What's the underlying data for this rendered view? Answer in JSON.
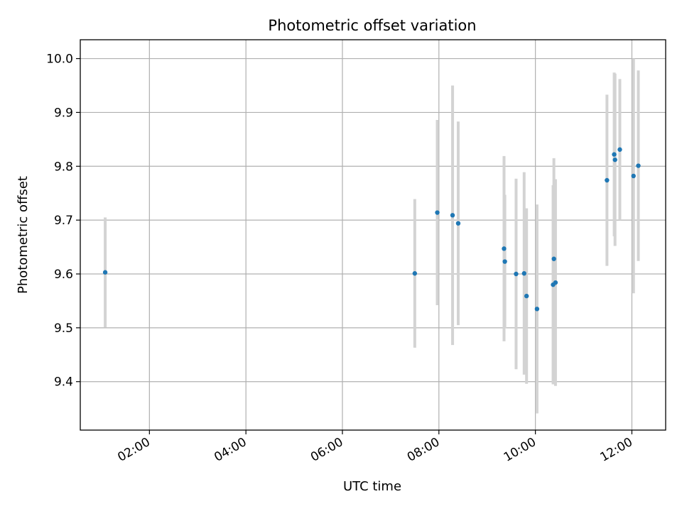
{
  "chart_data": {
    "type": "scatter",
    "title": "Photometric offset variation",
    "xlabel": "UTC time",
    "ylabel": "Photometric offset",
    "x_ticks": [
      "02:00",
      "04:00",
      "06:00",
      "08:00",
      "10:00",
      "12:00"
    ],
    "y_ticks": [
      "9.4",
      "9.5",
      "9.6",
      "9.7",
      "9.8",
      "9.9",
      "10.0"
    ],
    "xlim": [
      "00:34",
      "12:42"
    ],
    "ylim": [
      9.31,
      10.035
    ],
    "grid": true,
    "colors": {
      "point": "#1f77b4",
      "errorbar": "#d3d3d3",
      "grid": "#b0b0b0"
    },
    "series": [
      {
        "points": [
          {
            "x": "01:05",
            "y": 9.603,
            "err": 0.102
          },
          {
            "x": "07:30",
            "y": 9.601,
            "err": 0.138
          },
          {
            "x": "07:58",
            "y": 9.714,
            "err": 0.172
          },
          {
            "x": "08:17",
            "y": 9.709,
            "err": 0.241
          },
          {
            "x": "08:24",
            "y": 9.694,
            "err": 0.189
          },
          {
            "x": "09:21",
            "y": 9.647,
            "err": 0.172
          },
          {
            "x": "09:22",
            "y": 9.623,
            "err": 0.124
          },
          {
            "x": "09:36",
            "y": 9.6,
            "err": 0.177
          },
          {
            "x": "09:46",
            "y": 9.601,
            "err": 0.188
          },
          {
            "x": "09:49",
            "y": 9.559,
            "err": 0.163
          },
          {
            "x": "10:02",
            "y": 9.535,
            "err": 0.194
          },
          {
            "x": "10:22",
            "y": 9.58,
            "err": 0.185
          },
          {
            "x": "10:23",
            "y": 9.628,
            "err": 0.187
          },
          {
            "x": "10:25",
            "y": 9.584,
            "err": 0.192
          },
          {
            "x": "11:29",
            "y": 9.774,
            "err": 0.159
          },
          {
            "x": "11:38",
            "y": 9.822,
            "err": 0.152
          },
          {
            "x": "11:39",
            "y": 9.812,
            "err": 0.16
          },
          {
            "x": "11:45",
            "y": 9.831,
            "err": 0.131
          },
          {
            "x": "12:02",
            "y": 9.782,
            "err": 0.218
          },
          {
            "x": "12:08",
            "y": 9.801,
            "err": 0.177
          }
        ]
      }
    ]
  }
}
